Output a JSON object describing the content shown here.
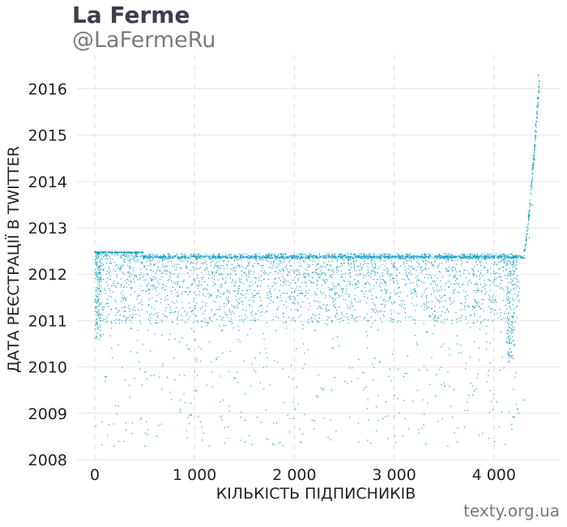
{
  "header": {
    "title": "La Ferme",
    "subtitle": "@LaFermeRu",
    "source": "texty.org.ua"
  },
  "chart_data": {
    "type": "scatter",
    "title": "La Ferme",
    "subtitle": "@LaFermeRu",
    "xlabel": "КІЛЬКІСТЬ ПІДПИСНИКІВ",
    "ylabel": "ДАТА РЕЄСТРАЦІЇ В TWITTER",
    "xlim": [
      -180,
      4600
    ],
    "ylim": [
      2008,
      2016.8
    ],
    "x_ticks": [
      0,
      1000,
      2000,
      3000,
      4000
    ],
    "x_tick_labels": [
      "0",
      "1 000",
      "2 000",
      "3 000",
      "4 000"
    ],
    "y_ticks": [
      2008,
      2009,
      2010,
      2011,
      2012,
      2013,
      2014,
      2015,
      2016
    ],
    "y_tick_labels": [
      "2008",
      "2009",
      "2010",
      "2011",
      "2012",
      "2013",
      "2014",
      "2015",
      "2016"
    ],
    "grid": {
      "x": "dashed",
      "y": "solid"
    },
    "point_color": "#1aa3c4",
    "series": [
      {
        "description": "followers of @LaFermeRu: index (x) vs. Twitter registration date (y)",
        "points": [
          [
            0,
            2012.5
          ],
          [
            100,
            2012.5
          ],
          [
            200,
            2012.5
          ],
          [
            300,
            2012.5
          ],
          [
            400,
            2012.5
          ],
          [
            500,
            2012.4
          ],
          [
            600,
            2012.4
          ],
          [
            700,
            2012.4
          ],
          [
            800,
            2012.4
          ],
          [
            900,
            2012.4
          ],
          [
            1000,
            2012.4
          ],
          [
            1200,
            2012.4
          ],
          [
            1400,
            2012.4
          ],
          [
            1600,
            2012.4
          ],
          [
            1800,
            2012.4
          ],
          [
            2000,
            2012.4
          ],
          [
            2200,
            2012.4
          ],
          [
            2400,
            2012.4
          ],
          [
            2600,
            2012.4
          ],
          [
            2800,
            2012.4
          ],
          [
            3000,
            2012.4
          ],
          [
            3200,
            2012.4
          ],
          [
            3400,
            2012.4
          ],
          [
            3600,
            2012.4
          ],
          [
            3800,
            2012.4
          ],
          [
            4000,
            2012.4
          ],
          [
            4200,
            2012.4
          ],
          [
            4300,
            2012.35
          ],
          [
            50,
            2012.1
          ],
          [
            150,
            2011.9
          ],
          [
            300,
            2011.5
          ],
          [
            450,
            2012.0
          ],
          [
            600,
            2011.7
          ],
          [
            800,
            2011.2
          ],
          [
            1000,
            2010.6
          ],
          [
            1200,
            2011.8
          ],
          [
            1400,
            2011.3
          ],
          [
            1600,
            2011.0
          ],
          [
            1800,
            2011.9
          ],
          [
            2000,
            2011.5
          ],
          [
            2200,
            2010.8
          ],
          [
            2400,
            2011.6
          ],
          [
            2600,
            2011.9
          ],
          [
            2800,
            2010.2
          ],
          [
            3000,
            2011.4
          ],
          [
            3200,
            2011.7
          ],
          [
            3400,
            2010.9
          ],
          [
            3600,
            2011.8
          ],
          [
            3800,
            2011.3
          ],
          [
            4000,
            2011.9
          ],
          [
            4200,
            2010.5
          ],
          [
            100,
            2009.8
          ],
          [
            500,
            2009.9
          ],
          [
            1000,
            2009.5
          ],
          [
            1500,
            2008.4
          ],
          [
            2000,
            2009.1
          ],
          [
            2500,
            2009.7
          ],
          [
            3000,
            2009.4
          ],
          [
            3500,
            2009.6
          ],
          [
            4000,
            2008.4
          ],
          [
            4300,
            2009.3
          ],
          [
            4350,
            2012.8
          ],
          [
            4380,
            2013.5
          ],
          [
            4400,
            2014.5
          ],
          [
            4420,
            2015.3
          ],
          [
            4430,
            2015.8
          ],
          [
            4440,
            2016.3
          ]
        ]
      }
    ]
  }
}
